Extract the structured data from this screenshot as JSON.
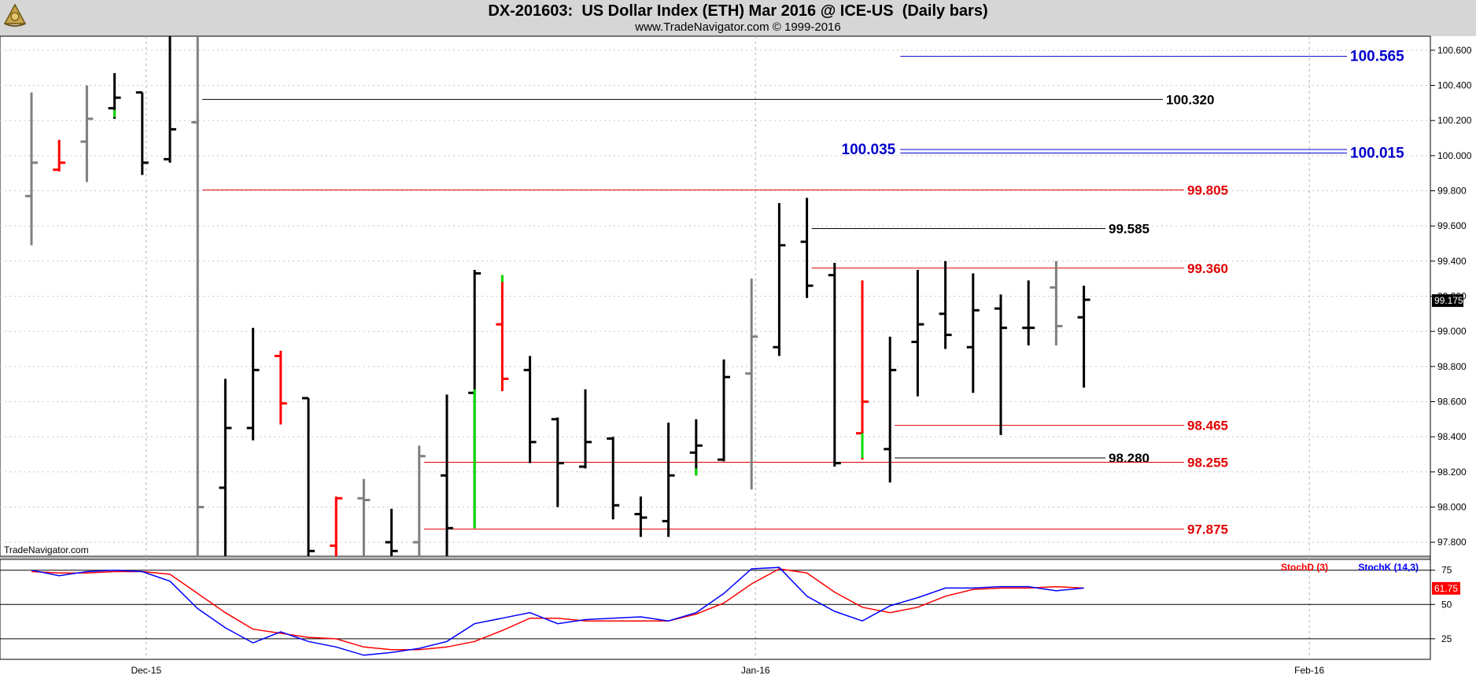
{
  "header": {
    "title": "DX-201603:  US Dollar Index (ETH) Mar 2016 @ ICE-US  (Daily bars)",
    "subtitle": "www.TradeNavigator.com © 1999-2016",
    "logo_icon": "sextant-logo-icon"
  },
  "watermark": "TradeNavigator.com",
  "colors": {
    "up_bar": "#000000",
    "neutral_bar": "#7f7f7f",
    "down_bar": "#ff0000",
    "signal_tick": "#00dd00",
    "blue_level": "#0000cc",
    "red_level": "#e00000",
    "black_level": "#000000",
    "stoch_d": "#ff0000",
    "stoch_k": "#0000ff"
  },
  "chart_data": [
    {
      "type": "ohlc",
      "title": "DX-201603:  US Dollar Index (ETH) Mar 2016 @ ICE-US  (Daily bars)",
      "ylim": [
        97.72,
        100.68
      ],
      "y_ticks": [
        "100.600",
        "100.400",
        "100.200",
        "100.000",
        "99.800",
        "99.600",
        "99.400",
        "99.200",
        "99.000",
        "98.800",
        "98.600",
        "98.400",
        "98.200",
        "98.000",
        "97.800"
      ],
      "x_ticks": [
        "Dec-15",
        "Jan-16",
        "Feb-16"
      ],
      "x_tick_slots": [
        4,
        26,
        46
      ],
      "vertical_gridlines_dotted": true,
      "last_price_label": "99.175",
      "bars": [
        {
          "o": 99.77,
          "h": 100.36,
          "l": 99.49,
          "c": 99.96,
          "color": "gray"
        },
        {
          "o": 99.92,
          "h": 100.09,
          "l": 99.91,
          "c": 99.96,
          "color": "red"
        },
        {
          "o": 100.08,
          "h": 100.4,
          "l": 99.85,
          "c": 100.21,
          "color": "gray"
        },
        {
          "o": 100.27,
          "h": 100.47,
          "l": 100.21,
          "c": 100.33,
          "color": "black",
          "sig": 100.24
        },
        {
          "o": 100.36,
          "h": 100.36,
          "l": 99.89,
          "c": 99.96,
          "color": "black"
        },
        {
          "o": 99.98,
          "h": 100.68,
          "l": 99.96,
          "c": 100.15,
          "color": "black"
        },
        {
          "o": 100.19,
          "h": 100.68,
          "l": 97.72,
          "c": 98.0,
          "color": "gray"
        },
        {
          "o": 98.11,
          "h": 98.73,
          "l": 97.72,
          "c": 98.45,
          "color": "black"
        },
        {
          "o": 98.45,
          "h": 99.02,
          "l": 98.38,
          "c": 98.78,
          "color": "black"
        },
        {
          "o": 98.86,
          "h": 98.89,
          "l": 98.47,
          "c": 98.59,
          "color": "red"
        },
        {
          "o": 98.62,
          "h": 98.62,
          "l": 97.72,
          "c": 97.75,
          "color": "black"
        },
        {
          "o": 97.78,
          "h": 98.06,
          "l": 97.72,
          "c": 98.05,
          "color": "red"
        },
        {
          "o": 98.05,
          "h": 98.16,
          "l": 97.72,
          "c": 98.04,
          "color": "gray"
        },
        {
          "o": 97.8,
          "h": 97.99,
          "l": 97.72,
          "c": 97.75,
          "color": "black"
        },
        {
          "o": 97.8,
          "h": 98.35,
          "l": 97.72,
          "c": 98.29,
          "color": "gray"
        },
        {
          "o": 98.18,
          "h": 98.64,
          "l": 97.72,
          "c": 97.88,
          "color": "black"
        },
        {
          "o": 98.65,
          "h": 99.35,
          "l": 97.88,
          "c": 99.33,
          "color": "black",
          "sig": 98.65
        },
        {
          "o": 99.04,
          "h": 99.32,
          "l": 98.66,
          "c": 98.73,
          "color": "red",
          "sig": 99.3
        },
        {
          "o": 98.78,
          "h": 98.86,
          "l": 98.25,
          "c": 98.37,
          "color": "black"
        },
        {
          "o": 98.5,
          "h": 98.51,
          "l": 98.0,
          "c": 98.25,
          "color": "black"
        },
        {
          "o": 98.23,
          "h": 98.67,
          "l": 98.22,
          "c": 98.37,
          "color": "black"
        },
        {
          "o": 98.39,
          "h": 98.4,
          "l": 97.93,
          "c": 98.01,
          "color": "black"
        },
        {
          "o": 97.96,
          "h": 98.06,
          "l": 97.83,
          "c": 97.94,
          "color": "black"
        },
        {
          "o": 97.92,
          "h": 98.48,
          "l": 97.83,
          "c": 98.18,
          "color": "black"
        },
        {
          "o": 98.31,
          "h": 98.5,
          "l": 98.18,
          "c": 98.35,
          "color": "black",
          "sig": 98.2
        },
        {
          "o": 98.27,
          "h": 98.84,
          "l": 98.26,
          "c": 98.74,
          "color": "black"
        },
        {
          "o": 98.76,
          "h": 99.3,
          "l": 98.1,
          "c": 98.97,
          "color": "gray"
        },
        {
          "o": 98.91,
          "h": 99.73,
          "l": 98.86,
          "c": 99.49,
          "color": "black"
        },
        {
          "o": 99.51,
          "h": 99.76,
          "l": 99.19,
          "c": 99.26,
          "color": "black"
        },
        {
          "o": 99.32,
          "h": 99.39,
          "l": 98.23,
          "c": 98.25,
          "color": "black"
        },
        {
          "o": 98.42,
          "h": 99.29,
          "l": 98.27,
          "c": 98.6,
          "color": "red",
          "sig": 98.35
        },
        {
          "o": 98.33,
          "h": 98.97,
          "l": 98.14,
          "c": 98.78,
          "color": "black"
        },
        {
          "o": 98.94,
          "h": 99.35,
          "l": 98.63,
          "c": 99.04,
          "color": "black"
        },
        {
          "o": 99.1,
          "h": 99.4,
          "l": 98.9,
          "c": 98.98,
          "color": "black"
        },
        {
          "o": 98.91,
          "h": 99.33,
          "l": 98.65,
          "c": 99.12,
          "color": "black"
        },
        {
          "o": 99.13,
          "h": 99.21,
          "l": 98.41,
          "c": 99.02,
          "color": "black"
        },
        {
          "o": 99.02,
          "h": 99.29,
          "l": 98.92,
          "c": 99.02,
          "color": "black"
        },
        {
          "o": 99.25,
          "h": 99.4,
          "l": 98.92,
          "c": 99.03,
          "color": "gray"
        },
        {
          "o": 99.08,
          "h": 99.26,
          "l": 98.68,
          "c": 99.18,
          "color": "black"
        }
      ],
      "levels": [
        {
          "label": "100.565",
          "value": 100.565,
          "color": "blue",
          "from_slot": 31.2,
          "label_side": "right"
        },
        {
          "label": "100.320",
          "value": 100.32,
          "color": "black",
          "from_slot": 6.0,
          "label_side": "right"
        },
        {
          "label": "100.035",
          "value": 100.035,
          "color": "blue",
          "from_slot": 31.2,
          "label_side": "left"
        },
        {
          "label": "100.015",
          "value": 100.015,
          "color": "blue",
          "from_slot": 31.2,
          "label_side": "right"
        },
        {
          "label": "99.805",
          "value": 99.805,
          "color": "red",
          "from_slot": 6.0,
          "label_side": "right"
        },
        {
          "label": "99.585",
          "value": 99.585,
          "color": "black",
          "from_slot": 28.0,
          "label_side": "right"
        },
        {
          "label": "99.360",
          "value": 99.36,
          "color": "red",
          "from_slot": 28.0,
          "label_side": "right"
        },
        {
          "label": "98.465",
          "value": 98.465,
          "color": "red",
          "from_slot": 31.0,
          "label_side": "right"
        },
        {
          "label": "98.280",
          "value": 98.28,
          "color": "black",
          "from_slot": 31.0,
          "label_side": "right"
        },
        {
          "label": "98.255",
          "value": 98.255,
          "color": "red",
          "from_slot": 14.0,
          "label_side": "right"
        },
        {
          "label": "97.875",
          "value": 97.875,
          "color": "red",
          "from_slot": 14.0,
          "label_side": "right"
        }
      ]
    },
    {
      "type": "line",
      "ylim": [
        10,
        80
      ],
      "y_ticks": [
        "75",
        "50",
        "25"
      ],
      "series": [
        {
          "name": "StochD (3)",
          "color": "red",
          "last_label": "61.75",
          "values": [
            74,
            73,
            73,
            74,
            74,
            72,
            58,
            44,
            32,
            29,
            26,
            25,
            19,
            17,
            17,
            19,
            23,
            31,
            40,
            40,
            38,
            38,
            38,
            38,
            43,
            51,
            65,
            76,
            73,
            59,
            48,
            44,
            48,
            56,
            61,
            62,
            62,
            63,
            62
          ]
        },
        {
          "name": "StochK (14,3)",
          "color": "blue",
          "values": [
            75,
            71,
            74,
            75,
            74,
            67,
            47,
            33,
            22,
            30,
            23,
            19,
            13,
            15,
            18,
            23,
            36,
            40,
            44,
            36,
            39,
            40,
            41,
            38,
            44,
            58,
            76,
            77,
            56,
            45,
            38,
            49,
            55,
            62,
            62,
            63,
            63,
            60,
            62
          ]
        }
      ]
    }
  ]
}
